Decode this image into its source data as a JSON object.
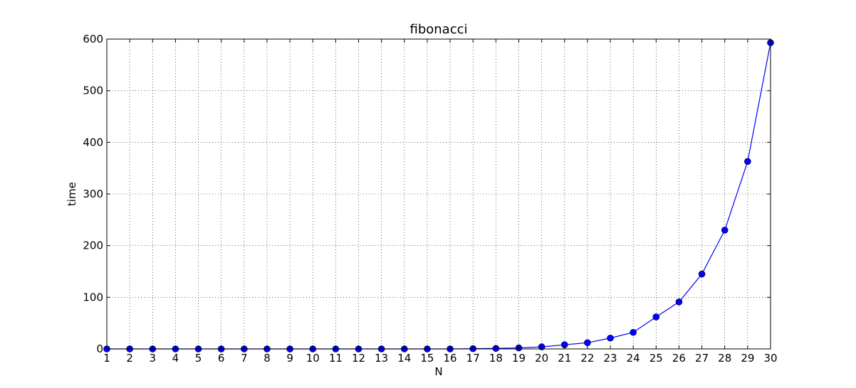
{
  "chart_data": {
    "type": "line",
    "title": "fibonacci",
    "xlabel": "N",
    "ylabel": "time",
    "x": [
      1,
      2,
      3,
      4,
      5,
      6,
      7,
      8,
      9,
      10,
      11,
      12,
      13,
      14,
      15,
      16,
      17,
      18,
      19,
      20,
      21,
      22,
      23,
      24,
      25,
      26,
      27,
      28,
      29,
      30
    ],
    "series": [
      {
        "values": [
          0,
          0,
          0,
          0,
          0,
          0,
          0,
          0,
          0,
          0,
          0,
          0,
          0,
          0,
          0,
          0,
          0.5,
          1,
          2,
          4,
          8,
          12,
          21,
          32,
          62,
          91,
          145,
          230,
          363,
          593
        ],
        "color": "#0000ff",
        "marker": "circle"
      }
    ],
    "xlim": [
      1,
      30
    ],
    "ylim": [
      0,
      600
    ],
    "xticks": [
      1,
      2,
      3,
      4,
      5,
      6,
      7,
      8,
      9,
      10,
      11,
      12,
      13,
      14,
      15,
      16,
      17,
      18,
      19,
      20,
      21,
      22,
      23,
      24,
      25,
      26,
      27,
      28,
      29,
      30
    ],
    "yticks": [
      0,
      100,
      200,
      300,
      400,
      500,
      600
    ],
    "grid": true,
    "legend": "none"
  }
}
